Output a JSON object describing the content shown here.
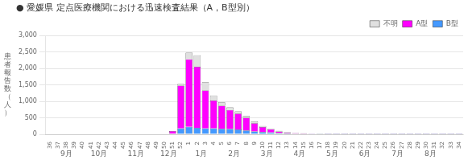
{
  "chart_data": {
    "type": "bar",
    "title": "● 愛媛県 定点医療機関における迅速検査結果（A，B型別）",
    "ylabel": "患\n者\n報\n告\n数\n（\n人\n）",
    "categories": [
      "36",
      "37",
      "38",
      "39",
      "40",
      "41",
      "42",
      "43",
      "44",
      "45",
      "46",
      "47",
      "48",
      "49",
      "50",
      "51",
      "52",
      "1",
      "2",
      "3",
      "4",
      "5",
      "6",
      "7",
      "8",
      "9",
      "10",
      "11",
      "12",
      "13",
      "14",
      "15",
      "16",
      "17",
      "18",
      "19",
      "20",
      "21",
      "22",
      "23",
      "24",
      "25",
      "26",
      "27",
      "28",
      "29",
      "30",
      "31",
      "32",
      "33",
      "34"
    ],
    "series": [
      {
        "name": "B型",
        "color": "#4499ff",
        "values": [
          0,
          0,
          0,
          0,
          0,
          0,
          0,
          0,
          0,
          0,
          0,
          0,
          0,
          0,
          0,
          20,
          180,
          230,
          200,
          180,
          180,
          170,
          160,
          150,
          120,
          90,
          70,
          55,
          40,
          30,
          20,
          15,
          10,
          8,
          5,
          5,
          5,
          5,
          5,
          5,
          5,
          5,
          5,
          5,
          5,
          5,
          5,
          5,
          5,
          5,
          5
        ]
      },
      {
        "name": "A型",
        "color": "#ff00ff",
        "values": [
          0,
          0,
          0,
          0,
          0,
          0,
          0,
          0,
          0,
          0,
          0,
          0,
          0,
          0,
          0,
          80,
          1300,
          2050,
          1850,
          1150,
          850,
          700,
          580,
          480,
          380,
          250,
          150,
          100,
          50,
          30,
          20,
          10,
          5,
          5,
          5,
          5,
          5,
          5,
          5,
          5,
          5,
          5,
          5,
          5,
          5,
          5,
          5,
          5,
          5,
          5,
          5
        ]
      },
      {
        "name": "不明",
        "color": "#e0e0e0",
        "values": [
          0,
          0,
          0,
          0,
          0,
          0,
          0,
          0,
          0,
          0,
          0,
          0,
          0,
          0,
          0,
          0,
          50,
          200,
          350,
          250,
          150,
          100,
          80,
          70,
          60,
          50,
          30,
          20,
          15,
          10,
          5,
          5,
          5,
          5,
          5,
          5,
          5,
          5,
          5,
          5,
          5,
          5,
          5,
          5,
          5,
          5,
          5,
          5,
          5,
          5,
          5
        ]
      }
    ],
    "stacked": true,
    "ylim": [
      0,
      3000
    ],
    "yticks": [
      0,
      500,
      1000,
      1500,
      2000,
      2500,
      3000
    ],
    "grid": true,
    "legend": "upper right",
    "annotations": [
      {
        "text": "9月",
        "x": 2.0
      },
      {
        "text": "10月",
        "x": 6.0
      },
      {
        "text": "11月",
        "x": 10.5
      },
      {
        "text": "12月",
        "x": 14.5
      },
      {
        "text": "1月",
        "x": 18.5
      },
      {
        "text": "2月",
        "x": 22.5
      },
      {
        "text": "3月",
        "x": 26.5
      },
      {
        "text": "4月",
        "x": 30.5
      },
      {
        "text": "5月",
        "x": 34.5
      },
      {
        "text": "6月",
        "x": 38.5
      },
      {
        "text": "7月",
        "x": 42.5
      },
      {
        "text": "8月",
        "x": 46.5
      }
    ]
  }
}
